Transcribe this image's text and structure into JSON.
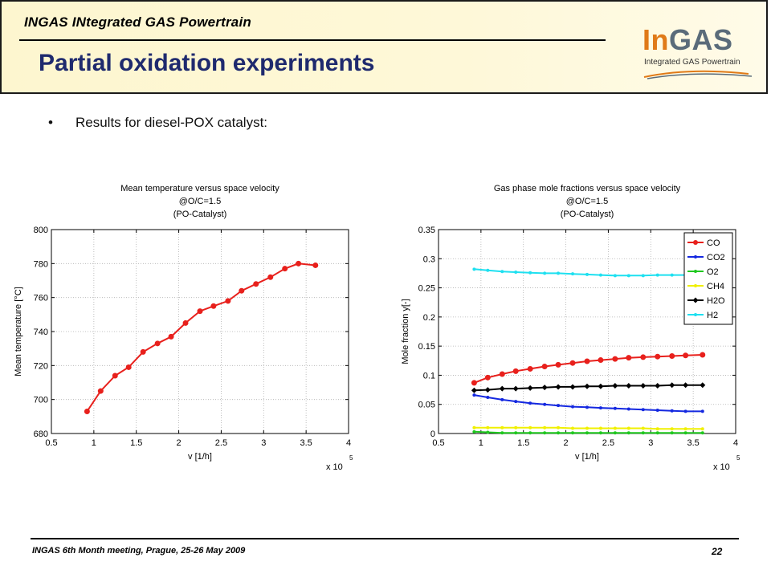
{
  "header": {
    "project_title": "INGAS INtegrated GAS Powertrain",
    "slide_title": "Partial oxidation experiments"
  },
  "logo": {
    "main_in": "In",
    "main_gas": "GAS",
    "subtitle": "Integrated GAS Powertrain",
    "colors": {
      "in": "#e07a18",
      "gas": "#5a6b7a"
    }
  },
  "bullet": {
    "marker": "•",
    "text": "Results for diesel-POX catalyst:"
  },
  "footer": {
    "meeting": "INGAS 6th Month meeting, Prague, 25-26 May 2009",
    "page_number": "22"
  },
  "chart_data": [
    {
      "type": "line",
      "title_lines": [
        "Mean temperature versus space velocity",
        "@O/C=1.5",
        "(PO-Catalyst)"
      ],
      "xlabel": "v [1/h]",
      "ylabel": "Mean temperature [°C]",
      "x_multiplier": "x 10",
      "x_multiplier_exp": "5",
      "xlim": [
        0.5,
        4
      ],
      "ylim": [
        680,
        800
      ],
      "xticks": [
        "0.5",
        "1",
        "1.5",
        "2",
        "2.5",
        "3",
        "3.5",
        "4"
      ],
      "yticks": [
        "680",
        "700",
        "720",
        "740",
        "760",
        "780",
        "800"
      ],
      "grid": true,
      "legend": "none",
      "series": [
        {
          "color": "#e8201c",
          "marker": "circle",
          "x": [
            0.92,
            1.08,
            1.25,
            1.41,
            1.58,
            1.75,
            1.91,
            2.08,
            2.25,
            2.41,
            2.58,
            2.74,
            2.91,
            3.08,
            3.25,
            3.41,
            3.61
          ],
          "y": [
            693,
            705,
            714,
            719,
            728,
            733,
            737,
            745,
            752,
            755,
            758,
            764,
            768,
            772,
            777,
            780,
            779
          ]
        }
      ]
    },
    {
      "type": "line",
      "title_lines": [
        "Gas phase mole fractions versus space velocity",
        "@O/C=1.5",
        "(PO-Catalyst)"
      ],
      "xlabel": "v [1/h]",
      "ylabel": "Mole fraction y[-]",
      "x_multiplier": "x 10",
      "x_multiplier_exp": "5",
      "xlim": [
        0.5,
        4
      ],
      "ylim": [
        0,
        0.35
      ],
      "xticks": [
        "0.5",
        "1",
        "1.5",
        "2",
        "2.5",
        "3",
        "3.5",
        "4"
      ],
      "yticks": [
        "0",
        "0.05",
        "0.1",
        "0.15",
        "0.2",
        "0.25",
        "0.3",
        "0.35"
      ],
      "grid": true,
      "legend": "top-right",
      "x": [
        0.92,
        1.08,
        1.25,
        1.41,
        1.58,
        1.75,
        1.91,
        2.08,
        2.25,
        2.41,
        2.58,
        2.74,
        2.91,
        3.08,
        3.25,
        3.41,
        3.61
      ],
      "series": [
        {
          "name": "CO",
          "color": "#e8201c",
          "marker": "circle",
          "values": [
            0.087,
            0.096,
            0.102,
            0.107,
            0.111,
            0.115,
            0.118,
            0.121,
            0.124,
            0.126,
            0.128,
            0.13,
            0.131,
            0.132,
            0.133,
            0.134,
            0.135
          ]
        },
        {
          "name": "CO2",
          "color": "#1428e0",
          "marker": "dot",
          "values": [
            0.066,
            0.062,
            0.058,
            0.055,
            0.052,
            0.05,
            0.048,
            0.046,
            0.045,
            0.044,
            0.043,
            0.042,
            0.041,
            0.04,
            0.039,
            0.038,
            0.038
          ]
        },
        {
          "name": "O2",
          "color": "#1fc81f",
          "marker": "dot",
          "values": [
            0.003,
            0.002,
            0.001,
            0.001,
            0.001,
            0.001,
            0.001,
            0.001,
            0.001,
            0.001,
            0.001,
            0.001,
            0.001,
            0.001,
            0.001,
            0.001,
            0.001
          ]
        },
        {
          "name": "CH4",
          "color": "#f0f000",
          "marker": "dot",
          "values": [
            0.01,
            0.01,
            0.01,
            0.01,
            0.01,
            0.01,
            0.01,
            0.009,
            0.009,
            0.009,
            0.009,
            0.009,
            0.009,
            0.008,
            0.008,
            0.008,
            0.008
          ]
        },
        {
          "name": "H2O",
          "color": "#000000",
          "marker": "diamond",
          "values": [
            0.074,
            0.075,
            0.077,
            0.077,
            0.078,
            0.079,
            0.08,
            0.08,
            0.081,
            0.081,
            0.082,
            0.082,
            0.082,
            0.082,
            0.083,
            0.083,
            0.083
          ]
        },
        {
          "name": "H2",
          "color": "#1ee0f0",
          "marker": "dot",
          "values": [
            0.282,
            0.28,
            0.278,
            0.277,
            0.276,
            0.275,
            0.275,
            0.274,
            0.273,
            0.272,
            0.271,
            0.271,
            0.271,
            0.272,
            0.272,
            0.272,
            0.273
          ]
        }
      ]
    }
  ]
}
